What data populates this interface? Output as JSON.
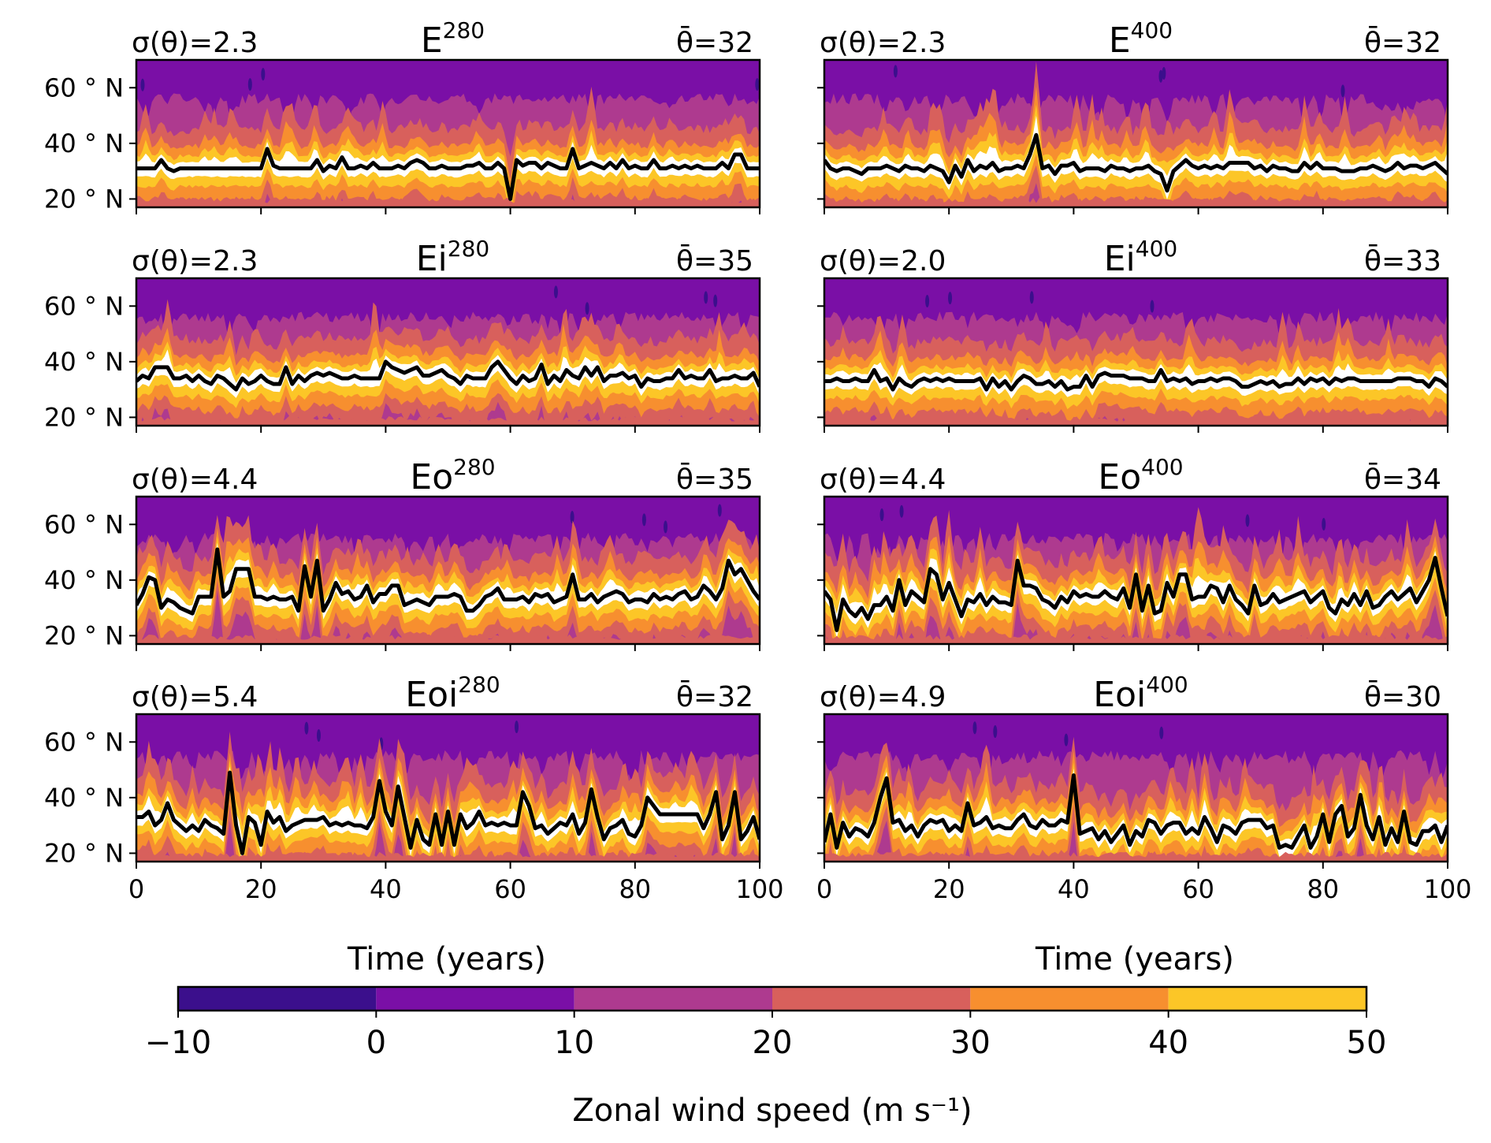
{
  "chart_data": {
    "type": "heatmap",
    "description_series": "latitude-time filled contours of zonal wind with jet latitude line",
    "xlim": [
      0,
      100
    ],
    "ylim": [
      17,
      70
    ],
    "xticks": [
      0,
      20,
      40,
      60,
      80,
      100
    ],
    "xtick_labels": [
      "0",
      "20",
      "40",
      "60",
      "80",
      "100"
    ],
    "yticks": [
      20,
      40,
      60
    ],
    "ytick_labels": [
      "20 ° N",
      "40 ° N",
      "60 ° N"
    ],
    "xlabel": "Time (years)",
    "panels": [
      {
        "name": "E",
        "level": "280",
        "sigma_label": "σ(θ)=2.3",
        "mean_label": "θ̄=32",
        "sigma": 2.3,
        "mean": 32,
        "pattern": "calm",
        "seed": 11,
        "jet_latitude": [
          31,
          31,
          31,
          31,
          34,
          31,
          30,
          31,
          31,
          31,
          31,
          31,
          31,
          31,
          31,
          31,
          31,
          31,
          31,
          31,
          31,
          38,
          32,
          31,
          31,
          31,
          31,
          31,
          31,
          34,
          30,
          32,
          31,
          35,
          31,
          31,
          32,
          31,
          33,
          31,
          31,
          31,
          32,
          31,
          33,
          34,
          33,
          31,
          31,
          32,
          31,
          31,
          31,
          32,
          32,
          33,
          31,
          31,
          33,
          31,
          20,
          34,
          32,
          33,
          33,
          31,
          33,
          32,
          31,
          31,
          38,
          31,
          32,
          33,
          32,
          31,
          33,
          31,
          34,
          31,
          32,
          31,
          31,
          34,
          31,
          31,
          32,
          31,
          32,
          31,
          32,
          31,
          31,
          31,
          33,
          31,
          36,
          36,
          31,
          31,
          31
        ]
      },
      {
        "name": "E",
        "level": "400",
        "sigma_label": "σ(θ)=2.3",
        "mean_label": "θ̄=32",
        "sigma": 2.3,
        "mean": 32,
        "pattern": "calm",
        "seed": 23,
        "jet_latitude": [
          34,
          31,
          30,
          31,
          31,
          30,
          29,
          31,
          31,
          31,
          32,
          31,
          30,
          32,
          31,
          31,
          30,
          32,
          31,
          30,
          26,
          32,
          28,
          34,
          30,
          32,
          31,
          33,
          30,
          31,
          31,
          32,
          31,
          36,
          43,
          31,
          32,
          29,
          32,
          32,
          33,
          30,
          31,
          31,
          31,
          30,
          32,
          31,
          31,
          30,
          31,
          31,
          32,
          30,
          29,
          23,
          30,
          32,
          34,
          32,
          31,
          32,
          31,
          32,
          31,
          33,
          33,
          33,
          33,
          31,
          32,
          30,
          32,
          31,
          31,
          30,
          30,
          33,
          31,
          33,
          31,
          31,
          31,
          30,
          30,
          30,
          31,
          31,
          32,
          31,
          30,
          31,
          33,
          31,
          32,
          32,
          31,
          32,
          33,
          31,
          29
        ]
      },
      {
        "name": "Ei",
        "level": "280",
        "sigma_label": "σ(θ)=2.3",
        "mean_label": "θ̄=35",
        "sigma": 2.3,
        "mean": 35,
        "pattern": "calm",
        "seed": 37,
        "jet_latitude": [
          33,
          35,
          34,
          38,
          38,
          38,
          34,
          34,
          35,
          33,
          35,
          33,
          32,
          35,
          34,
          32,
          30,
          34,
          32,
          33,
          35,
          33,
          32,
          32,
          38,
          32,
          35,
          33,
          35,
          36,
          35,
          36,
          35,
          34,
          34,
          35,
          34,
          34,
          34,
          34,
          40,
          38,
          37,
          36,
          37,
          38,
          35,
          35,
          36,
          37,
          35,
          34,
          32,
          35,
          34,
          34,
          34,
          38,
          40,
          37,
          34,
          32,
          35,
          33,
          34,
          39,
          32,
          35,
          33,
          37,
          35,
          34,
          38,
          35,
          38,
          33,
          35,
          35,
          36,
          34,
          35,
          31,
          34,
          33,
          33,
          34,
          34,
          37,
          34,
          35,
          34,
          34,
          37,
          33,
          34,
          34,
          35,
          34,
          34,
          36,
          31
        ]
      },
      {
        "name": "Ei",
        "level": "400",
        "sigma_label": "σ(θ)=2.0",
        "mean_label": "θ̄=33",
        "sigma": 2.0,
        "mean": 33,
        "pattern": "calm",
        "seed": 41,
        "jet_latitude": [
          33,
          33,
          34,
          33,
          33,
          34,
          33,
          33,
          37,
          33,
          34,
          30,
          34,
          32,
          31,
          33,
          34,
          33,
          34,
          33,
          34,
          33,
          33,
          33,
          33,
          34,
          30,
          34,
          31,
          33,
          30,
          33,
          35,
          34,
          32,
          32,
          33,
          31,
          33,
          30,
          31,
          31,
          35,
          31,
          35,
          36,
          35,
          35,
          35,
          34,
          34,
          34,
          33,
          33,
          37,
          33,
          34,
          33,
          34,
          32,
          33,
          33,
          34,
          33,
          34,
          34,
          33,
          31,
          31,
          32,
          33,
          32,
          33,
          31,
          32,
          32,
          34,
          32,
          34,
          33,
          34,
          32,
          34,
          33,
          34,
          34,
          33,
          33,
          33,
          33,
          33,
          33,
          34,
          34,
          34,
          33,
          33,
          31,
          34,
          33,
          31
        ]
      },
      {
        "name": "Eo",
        "level": "280",
        "sigma_label": "σ(θ)=4.4",
        "mean_label": "θ̄=35",
        "sigma": 4.4,
        "mean": 35,
        "pattern": "noisy",
        "seed": 53,
        "jet_latitude": [
          31,
          35,
          41,
          40,
          30,
          33,
          32,
          30,
          29,
          28,
          34,
          34,
          34,
          51,
          34,
          36,
          44,
          44,
          44,
          34,
          34,
          33,
          34,
          33,
          33,
          34,
          29,
          45,
          34,
          47,
          29,
          33,
          39,
          35,
          36,
          33,
          34,
          38,
          32,
          35,
          35,
          38,
          38,
          31,
          32,
          33,
          32,
          31,
          34,
          34,
          34,
          35,
          34,
          29,
          29,
          31,
          34,
          35,
          37,
          33,
          33,
          33,
          34,
          32,
          35,
          34,
          35,
          32,
          33,
          34,
          42,
          33,
          33,
          35,
          32,
          34,
          35,
          36,
          35,
          32,
          33,
          33,
          32,
          35,
          33,
          34,
          33,
          35,
          36,
          33,
          34,
          38,
          36,
          33,
          37,
          47,
          42,
          44,
          40,
          36,
          33
        ]
      },
      {
        "name": "Eo",
        "level": "400",
        "sigma_label": "σ(θ)=4.4",
        "mean_label": "θ̄=34",
        "sigma": 4.4,
        "mean": 34,
        "pattern": "noisy",
        "seed": 67,
        "jet_latitude": [
          36,
          33,
          22,
          33,
          29,
          27,
          30,
          26,
          31,
          31,
          34,
          29,
          40,
          31,
          36,
          34,
          32,
          44,
          42,
          33,
          39,
          33,
          27,
          33,
          32,
          35,
          31,
          34,
          32,
          32,
          31,
          47,
          38,
          38,
          37,
          33,
          32,
          30,
          34,
          32,
          36,
          34,
          35,
          34,
          34,
          36,
          34,
          33,
          37,
          30,
          42,
          29,
          38,
          28,
          29,
          39,
          34,
          42,
          42,
          33,
          34,
          34,
          38,
          37,
          32,
          38,
          33,
          31,
          28,
          38,
          31,
          32,
          35,
          32,
          33,
          34,
          35,
          36,
          32,
          34,
          36,
          30,
          28,
          33,
          31,
          35,
          31,
          36,
          30,
          31,
          34,
          36,
          33,
          35,
          37,
          32,
          36,
          40,
          48,
          37,
          27
        ]
      },
      {
        "name": "Eoi",
        "level": "280",
        "sigma_label": "σ(θ)=5.4",
        "mean_label": "θ̄=32",
        "sigma": 5.4,
        "mean": 32,
        "pattern": "noisy",
        "seed": 79,
        "jet_latitude": [
          33,
          33,
          35,
          30,
          32,
          38,
          32,
          30,
          28,
          30,
          28,
          32,
          30,
          29,
          27,
          49,
          30,
          20,
          33,
          31,
          23,
          35,
          31,
          33,
          28,
          30,
          31,
          32,
          32,
          32,
          33,
          30,
          31,
          30,
          31,
          30,
          30,
          29,
          33,
          46,
          35,
          30,
          44,
          33,
          22,
          32,
          25,
          23,
          34,
          23,
          35,
          23,
          34,
          29,
          31,
          35,
          30,
          31,
          30,
          31,
          30,
          30,
          42,
          37,
          29,
          30,
          27,
          29,
          31,
          30,
          34,
          27,
          31,
          43,
          33,
          25,
          29,
          30,
          32,
          27,
          26,
          30,
          40,
          37,
          34,
          34,
          34,
          34,
          34,
          34,
          34,
          29,
          34,
          42,
          25,
          30,
          42,
          25,
          28,
          33,
          25
        ]
      },
      {
        "name": "Eoi",
        "level": "400",
        "sigma_label": "σ(θ)=4.9",
        "mean_label": "θ̄=30",
        "sigma": 4.9,
        "mean": 30,
        "pattern": "noisy",
        "seed": 97,
        "jet_latitude": [
          24,
          34,
          22,
          31,
          26,
          29,
          28,
          26,
          31,
          40,
          47,
          31,
          32,
          28,
          30,
          26,
          30,
          32,
          31,
          32,
          28,
          30,
          28,
          38,
          30,
          31,
          33,
          29,
          30,
          29,
          29,
          32,
          34,
          30,
          29,
          32,
          30,
          30,
          32,
          31,
          48,
          27,
          28,
          29,
          25,
          28,
          24,
          27,
          30,
          23,
          28,
          26,
          32,
          31,
          27,
          30,
          31,
          31,
          27,
          29,
          27,
          33,
          29,
          24,
          30,
          29,
          27,
          31,
          32,
          32,
          32,
          29,
          30,
          22,
          23,
          22,
          26,
          30,
          22,
          26,
          34,
          24,
          34,
          37,
          26,
          29,
          41,
          30,
          25,
          33,
          23,
          29,
          24,
          35,
          24,
          23,
          28,
          28,
          30,
          24,
          30
        ]
      }
    ],
    "colorbar": {
      "label": "Zonal wind speed (m s⁻¹)",
      "levels": [
        -10,
        0,
        10,
        20,
        30,
        40,
        50
      ],
      "tick_labels": [
        "−10",
        "0",
        "10",
        "20",
        "30",
        "40",
        "50"
      ],
      "colors": [
        "#3b0f8c",
        "#7a0fa6",
        "#ae3a8f",
        "#d8605c",
        "#f78f2f",
        "#fcc627"
      ]
    },
    "colors": {
      "over_jet": "#ffffff",
      "jet_line": "#000000"
    }
  }
}
